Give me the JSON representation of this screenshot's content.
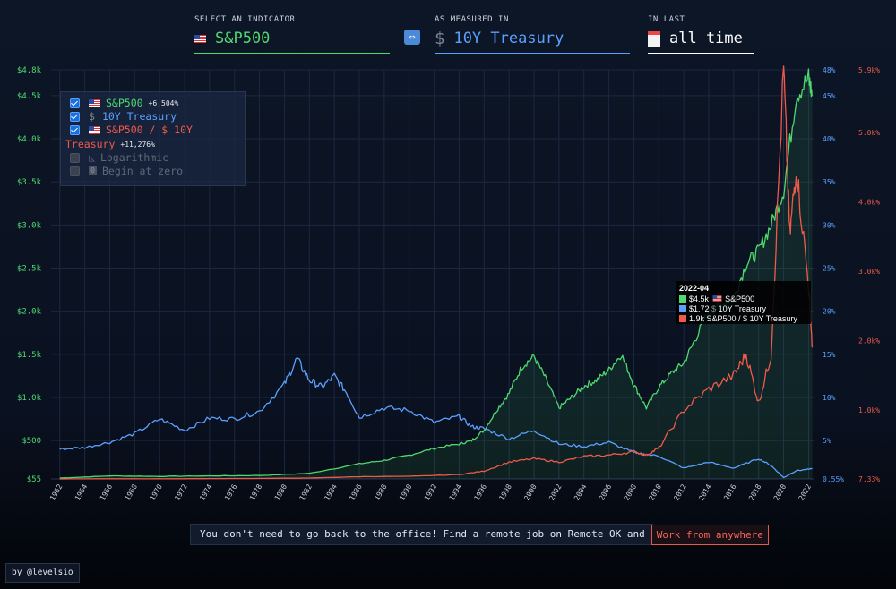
{
  "header": {
    "indicator_label": "SELECT AN INDICATOR",
    "indicator_value": "S&P500",
    "swap_icon": "swap-arrows-icon",
    "measure_label": "AS MEASURED IN",
    "measure_value": "10Y Treasury",
    "range_label": "IN LAST",
    "range_value": "all time",
    "colors": {
      "sp500": "#4fd870",
      "treasury": "#5aa0ff",
      "ratio": "#ef5a4c"
    }
  },
  "legend": {
    "items": [
      {
        "label": "S&P500",
        "change": "+6,504%",
        "checked": true
      },
      {
        "label": "10Y Treasury",
        "change": "",
        "checked": true
      },
      {
        "label": "S&P500 / $ 10Y",
        "label2": "Treasury",
        "change": "+11,276%",
        "checked": true
      },
      {
        "label": "Logarithmic",
        "checked": false
      },
      {
        "label": "Begin at zero",
        "checked": false
      }
    ]
  },
  "tooltip": {
    "date": "2022-04",
    "rows": [
      {
        "value": "$4.5k",
        "name": "S&P500",
        "color": "#4fd870"
      },
      {
        "value": "$1.72",
        "name": "10Y Treasury",
        "color": "#5aa0ff"
      },
      {
        "value": "1.9k",
        "name": "S&P500 / $ 10Y Treasury",
        "color": "#ef5a4c"
      }
    ]
  },
  "banner": {
    "message": "You don't need to go back to the office! Find a remote job on Remote OK and",
    "cta": "Work from anywhere"
  },
  "credit": "by @levelsio",
  "chart_data": {
    "type": "line",
    "x_ticks": [
      "1962",
      "1964",
      "1966",
      "1968",
      "1970",
      "1972",
      "1974",
      "1976",
      "1978",
      "1980",
      "1982",
      "1984",
      "1986",
      "1988",
      "1990",
      "1992",
      "1994",
      "1996",
      "1998",
      "2000",
      "2002",
      "2004",
      "2006",
      "2008",
      "2010",
      "2012",
      "2014",
      "2016",
      "2018",
      "2020",
      "2022"
    ],
    "left_axis": {
      "ticks": [
        "$55",
        "$500",
        "$1.0k",
        "$1.5k",
        "$2.0k",
        "$2.5k",
        "$3.0k",
        "$3.5k",
        "$4.0k",
        "$4.5k",
        "$4.8k"
      ],
      "values": [
        55,
        500,
        1000,
        1500,
        2000,
        2500,
        3000,
        3500,
        4000,
        4500,
        4800
      ]
    },
    "mid_axis": {
      "ticks": [
        "0.55%",
        "5%",
        "10%",
        "15%",
        "20%",
        "25%",
        "30%",
        "35%",
        "40%",
        "45%",
        "48%"
      ],
      "values": [
        0.55,
        5,
        10,
        15,
        20,
        25,
        30,
        35,
        40,
        45,
        48
      ]
    },
    "right_axis": {
      "ticks": [
        "7.33%",
        "1.0k%",
        "2.0k%",
        "3.0k%",
        "4.0k%",
        "5.0k%",
        "5.9k%"
      ],
      "values": [
        7.33,
        1000,
        2000,
        3000,
        4000,
        5000,
        5900
      ]
    },
    "grid": true,
    "series": [
      {
        "name": "S&P500",
        "axis": "left",
        "color": "#4fd870",
        "x": [
          1962,
          1966,
          1970,
          1974,
          1978,
          1982,
          1986,
          1988,
          1990,
          1992,
          1994,
          1995,
          1996,
          1997,
          1998,
          1999,
          2000,
          2001,
          2002,
          2003,
          2004,
          2005,
          2006,
          2007,
          2008,
          2009,
          2010,
          2011,
          2012,
          2013,
          2014,
          2015,
          2016,
          2017,
          2018,
          2019,
          2020,
          2021,
          2022,
          2022.3
        ],
        "y": [
          65,
          90,
          85,
          90,
          95,
          120,
          230,
          270,
          330,
          410,
          460,
          500,
          620,
          850,
          1050,
          1350,
          1480,
          1200,
          880,
          1000,
          1130,
          1200,
          1320,
          1500,
          1150,
          880,
          1120,
          1280,
          1400,
          1700,
          2000,
          2070,
          2150,
          2550,
          2700,
          3000,
          3400,
          4500,
          4700,
          4500
        ]
      },
      {
        "name": "10Y Treasury",
        "axis": "mid",
        "color": "#5aa0ff",
        "x": [
          1962,
          1964,
          1966,
          1968,
          1970,
          1972,
          1974,
          1976,
          1978,
          1980,
          1981,
          1982,
          1983,
          1984,
          1985,
          1986,
          1988,
          1990,
          1992,
          1994,
          1995,
          1996,
          1998,
          2000,
          2002,
          2004,
          2006,
          2008,
          2010,
          2012,
          2014,
          2016,
          2018,
          2019,
          2020,
          2021,
          2022.3
        ],
        "y": [
          4,
          4.2,
          4.8,
          5.8,
          7.5,
          6.2,
          7.6,
          7.5,
          8.4,
          11.5,
          14.5,
          12,
          11.2,
          12.5,
          10.5,
          7.7,
          8.8,
          8.5,
          7.1,
          7.8,
          6.6,
          6.4,
          5.2,
          6.2,
          4.6,
          4.3,
          4.8,
          3.6,
          3.2,
          1.8,
          2.5,
          1.8,
          2.9,
          2.1,
          0.7,
          1.5,
          1.72
        ]
      },
      {
        "name": "S&P500 / $ 10Y Treasury",
        "axis": "right",
        "color": "#ef5a4c",
        "x": [
          1962,
          1966,
          1970,
          1974,
          1978,
          1982,
          1986,
          1990,
          1994,
          1996,
          1998,
          2000,
          2002,
          2004,
          2006,
          2008,
          2009,
          2010,
          2012,
          2014,
          2016,
          2017,
          2018,
          2019,
          2020,
          2020.5,
          2021,
          2022,
          2022.3
        ],
        "y": [
          7.33,
          10,
          9,
          12,
          15,
          20,
          40,
          45,
          70,
          120,
          250,
          300,
          250,
          330,
          350,
          400,
          350,
          450,
          1000,
          1300,
          1500,
          1800,
          1100,
          1800,
          5900,
          3500,
          4500,
          2800,
          1900
        ]
      }
    ]
  }
}
